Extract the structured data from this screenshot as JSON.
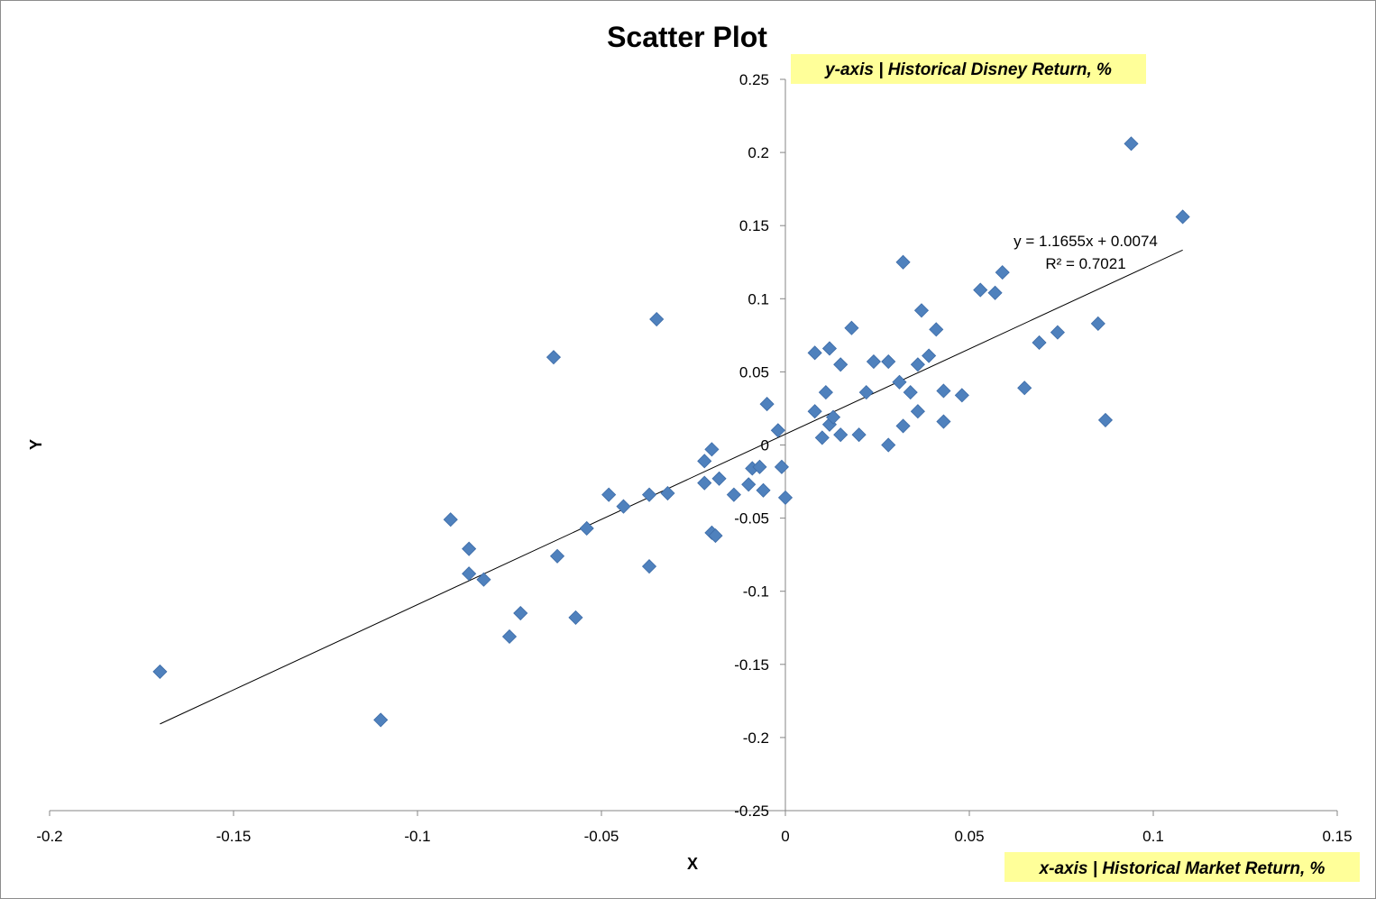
{
  "chart_data": {
    "type": "scatter",
    "title": "Scatter Plot",
    "xlabel": "X",
    "ylabel": "Y",
    "xlim": [
      -0.2,
      0.15
    ],
    "ylim": [
      -0.25,
      0.25
    ],
    "x_ticks": [
      "-0.2",
      "-0.15",
      "-0.1",
      "-0.05",
      "0",
      "0.05",
      "0.1",
      "0.15"
    ],
    "y_ticks": [
      "0.25",
      "0.2",
      "0.15",
      "0.1",
      "0.05",
      "0",
      "-0.05",
      "-0.1",
      "-0.15",
      "-0.2",
      "-0.25"
    ],
    "grid": false,
    "marker": "diamond",
    "marker_color": "#4F81BD",
    "trendline": {
      "slope": 1.1655,
      "intercept": 0.0074,
      "equation": "y = 1.1655x + 0.0074",
      "r_squared": "R² = 0.7021",
      "x_range": [
        -0.17,
        0.108
      ]
    },
    "annotations": [
      {
        "text": "y-axis | Historical Disney Return, %",
        "background": "#FFFF99"
      },
      {
        "text": "x-axis | Historical Market Return, %",
        "background": "#FFFF99"
      }
    ],
    "points": [
      {
        "x": -0.17,
        "y": -0.155
      },
      {
        "x": -0.11,
        "y": -0.188
      },
      {
        "x": -0.091,
        "y": -0.051
      },
      {
        "x": -0.086,
        "y": -0.071
      },
      {
        "x": -0.086,
        "y": -0.088
      },
      {
        "x": -0.082,
        "y": -0.092
      },
      {
        "x": -0.075,
        "y": -0.131
      },
      {
        "x": -0.072,
        "y": -0.115
      },
      {
        "x": -0.063,
        "y": 0.06
      },
      {
        "x": -0.062,
        "y": -0.076
      },
      {
        "x": -0.057,
        "y": -0.118
      },
      {
        "x": -0.054,
        "y": -0.057
      },
      {
        "x": -0.048,
        "y": -0.034
      },
      {
        "x": -0.044,
        "y": -0.042
      },
      {
        "x": -0.037,
        "y": -0.034
      },
      {
        "x": -0.037,
        "y": -0.083
      },
      {
        "x": -0.035,
        "y": 0.086
      },
      {
        "x": -0.032,
        "y": -0.033
      },
      {
        "x": -0.022,
        "y": -0.011
      },
      {
        "x": -0.022,
        "y": -0.026
      },
      {
        "x": -0.02,
        "y": -0.003
      },
      {
        "x": -0.02,
        "y": -0.06
      },
      {
        "x": -0.019,
        "y": -0.062
      },
      {
        "x": -0.018,
        "y": -0.023
      },
      {
        "x": -0.014,
        "y": -0.034
      },
      {
        "x": -0.01,
        "y": -0.027
      },
      {
        "x": -0.009,
        "y": -0.016
      },
      {
        "x": -0.007,
        "y": -0.015
      },
      {
        "x": -0.006,
        "y": -0.031
      },
      {
        "x": -0.005,
        "y": 0.028
      },
      {
        "x": -0.002,
        "y": 0.01
      },
      {
        "x": -0.001,
        "y": -0.015
      },
      {
        "x": 0.0,
        "y": -0.036
      },
      {
        "x": 0.008,
        "y": 0.023
      },
      {
        "x": 0.008,
        "y": 0.063
      },
      {
        "x": 0.01,
        "y": 0.005
      },
      {
        "x": 0.011,
        "y": 0.036
      },
      {
        "x": 0.012,
        "y": 0.066
      },
      {
        "x": 0.012,
        "y": 0.014
      },
      {
        "x": 0.013,
        "y": 0.019
      },
      {
        "x": 0.015,
        "y": 0.007
      },
      {
        "x": 0.015,
        "y": 0.055
      },
      {
        "x": 0.018,
        "y": 0.08
      },
      {
        "x": 0.02,
        "y": 0.007
      },
      {
        "x": 0.022,
        "y": 0.036
      },
      {
        "x": 0.024,
        "y": 0.057
      },
      {
        "x": 0.028,
        "y": 0.057
      },
      {
        "x": 0.028,
        "y": 0.0
      },
      {
        "x": 0.031,
        "y": 0.043
      },
      {
        "x": 0.032,
        "y": 0.125
      },
      {
        "x": 0.032,
        "y": 0.013
      },
      {
        "x": 0.034,
        "y": 0.036
      },
      {
        "x": 0.036,
        "y": 0.055
      },
      {
        "x": 0.036,
        "y": 0.023
      },
      {
        "x": 0.037,
        "y": 0.092
      },
      {
        "x": 0.039,
        "y": 0.061
      },
      {
        "x": 0.041,
        "y": 0.079
      },
      {
        "x": 0.043,
        "y": 0.037
      },
      {
        "x": 0.043,
        "y": 0.016
      },
      {
        "x": 0.048,
        "y": 0.034
      },
      {
        "x": 0.053,
        "y": 0.106
      },
      {
        "x": 0.057,
        "y": 0.104
      },
      {
        "x": 0.059,
        "y": 0.118
      },
      {
        "x": 0.065,
        "y": 0.039
      },
      {
        "x": 0.069,
        "y": 0.07
      },
      {
        "x": 0.074,
        "y": 0.077
      },
      {
        "x": 0.085,
        "y": 0.083
      },
      {
        "x": 0.087,
        "y": 0.017
      },
      {
        "x": 0.094,
        "y": 0.206
      },
      {
        "x": 0.108,
        "y": 0.156
      }
    ]
  }
}
